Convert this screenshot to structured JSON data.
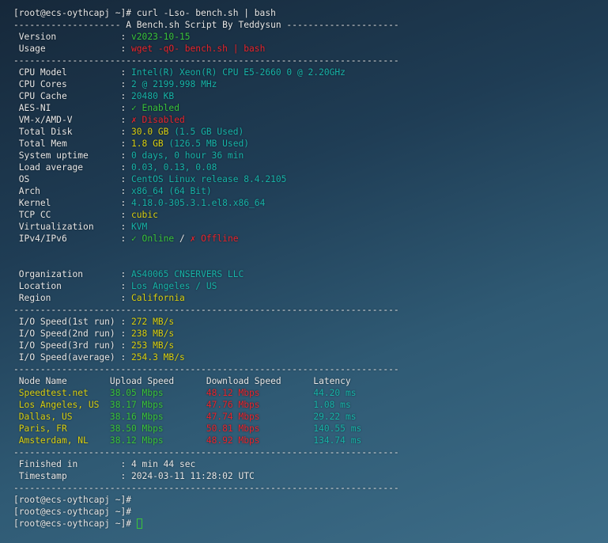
{
  "terminal": {
    "colors": {
      "white": "#e8e8e8",
      "green": "#3ac43a",
      "red": "#e8242c",
      "cyan": "#17b3a8",
      "yellow": "#d9cf10"
    },
    "lines": [
      [
        [
          "w",
          "[root@ecs-oythcapj ~]# curl -Lso- bench.sh | bash"
        ]
      ],
      [
        [
          "w",
          "-------------------- A Bench.sh Script By Teddysun ---------------------"
        ]
      ],
      [
        [
          "w",
          " Version            : "
        ],
        [
          "g",
          "v2023-10-15"
        ]
      ],
      [
        [
          "w",
          " Usage              : "
        ],
        [
          "r",
          "wget -qO- bench.sh | bash"
        ]
      ],
      [
        [
          "w",
          "------------------------------------------------------------------------"
        ]
      ],
      [
        [
          "w",
          " CPU Model          : "
        ],
        [
          "c",
          "Intel(R) Xeon(R) CPU E5-2660 0 @ 2.20GHz"
        ]
      ],
      [
        [
          "w",
          " CPU Cores          : "
        ],
        [
          "c",
          "2 @ 2199.998 MHz"
        ]
      ],
      [
        [
          "w",
          " CPU Cache          : "
        ],
        [
          "c",
          "20480 KB"
        ]
      ],
      [
        [
          "w",
          " AES-NI             : "
        ],
        [
          "g",
          "✓ Enabled"
        ]
      ],
      [
        [
          "w",
          " VM-x/AMD-V         : "
        ],
        [
          "r",
          "✗ Disabled"
        ]
      ],
      [
        [
          "w",
          " Total Disk         : "
        ],
        [
          "y",
          "30.0 GB"
        ],
        [
          "c",
          " (1.5 GB Used)"
        ]
      ],
      [
        [
          "w",
          " Total Mem          : "
        ],
        [
          "y",
          "1.8 GB"
        ],
        [
          "c",
          " (126.5 MB Used)"
        ]
      ],
      [
        [
          "w",
          " System uptime      : "
        ],
        [
          "c",
          "0 days, 0 hour 36 min"
        ]
      ],
      [
        [
          "w",
          " Load average       : "
        ],
        [
          "c",
          "0.03, 0.13, 0.08"
        ]
      ],
      [
        [
          "w",
          " OS                 : "
        ],
        [
          "c",
          "CentOS Linux release 8.4.2105"
        ]
      ],
      [
        [
          "w",
          " Arch               : "
        ],
        [
          "c",
          "x86_64 (64 Bit)"
        ]
      ],
      [
        [
          "w",
          " Kernel             : "
        ],
        [
          "c",
          "4.18.0-305.3.1.el8.x86_64"
        ]
      ],
      [
        [
          "w",
          " TCP CC             : "
        ],
        [
          "y",
          "cubic"
        ]
      ],
      [
        [
          "w",
          " Virtualization     : "
        ],
        [
          "c",
          "KVM"
        ]
      ],
      [
        [
          "w",
          " IPv4/IPv6          : "
        ],
        [
          "g",
          "✓ Online"
        ],
        [
          "w",
          " / "
        ],
        [
          "r",
          "✗ Offline"
        ]
      ],
      [
        [
          "w",
          " "
        ]
      ],
      [
        [
          "w",
          " "
        ]
      ],
      [
        [
          "w",
          " Organization       : "
        ],
        [
          "c",
          "AS40065 CNSERVERS LLC"
        ]
      ],
      [
        [
          "w",
          " Location           : "
        ],
        [
          "c",
          "Los Angeles / US"
        ]
      ],
      [
        [
          "w",
          " Region             : "
        ],
        [
          "y",
          "California"
        ]
      ],
      [
        [
          "w",
          "------------------------------------------------------------------------"
        ]
      ],
      [
        [
          "w",
          " I/O Speed(1st run) : "
        ],
        [
          "y",
          "272 MB/s"
        ]
      ],
      [
        [
          "w",
          " I/O Speed(2nd run) : "
        ],
        [
          "y",
          "238 MB/s"
        ]
      ],
      [
        [
          "w",
          " I/O Speed(3rd run) : "
        ],
        [
          "y",
          "253 MB/s"
        ]
      ],
      [
        [
          "w",
          " I/O Speed(average) : "
        ],
        [
          "y",
          "254.3 MB/s"
        ]
      ],
      [
        [
          "w",
          "------------------------------------------------------------------------"
        ]
      ],
      [
        [
          "w",
          " Node Name        Upload Speed      Download Speed      Latency     "
        ]
      ],
      [
        [
          "y",
          " Speedtest.net    "
        ],
        [
          "g",
          "38.05 Mbps        "
        ],
        [
          "r",
          "48.12 Mbps          "
        ],
        [
          "c",
          "44.20 ms"
        ]
      ],
      [
        [
          "y",
          " Los Angeles, US  "
        ],
        [
          "g",
          "38.17 Mbps        "
        ],
        [
          "r",
          "47.76 Mbps          "
        ],
        [
          "c",
          "1.08 ms"
        ]
      ],
      [
        [
          "y",
          " Dallas, US       "
        ],
        [
          "g",
          "38.16 Mbps        "
        ],
        [
          "r",
          "47.74 Mbps          "
        ],
        [
          "c",
          "29.22 ms"
        ]
      ],
      [
        [
          "y",
          " Paris, FR        "
        ],
        [
          "g",
          "38.50 Mbps        "
        ],
        [
          "r",
          "50.81 Mbps          "
        ],
        [
          "c",
          "140.55 ms"
        ]
      ],
      [
        [
          "y",
          " Amsterdam, NL    "
        ],
        [
          "g",
          "38.12 Mbps        "
        ],
        [
          "r",
          "48.92 Mbps          "
        ],
        [
          "c",
          "134.74 ms"
        ]
      ],
      [
        [
          "w",
          "------------------------------------------------------------------------"
        ]
      ],
      [
        [
          "w",
          " Finished in        : 4 min 44 sec"
        ]
      ],
      [
        [
          "w",
          " Timestamp          : 2024-03-11 11:28:02 UTC"
        ]
      ],
      [
        [
          "w",
          "------------------------------------------------------------------------"
        ]
      ],
      [
        [
          "w",
          "[root@ecs-oythcapj ~]#"
        ]
      ],
      [
        [
          "w",
          "[root@ecs-oythcapj ~]#"
        ]
      ],
      [
        [
          "w",
          "[root@ecs-oythcapj ~]# "
        ]
      ]
    ]
  }
}
